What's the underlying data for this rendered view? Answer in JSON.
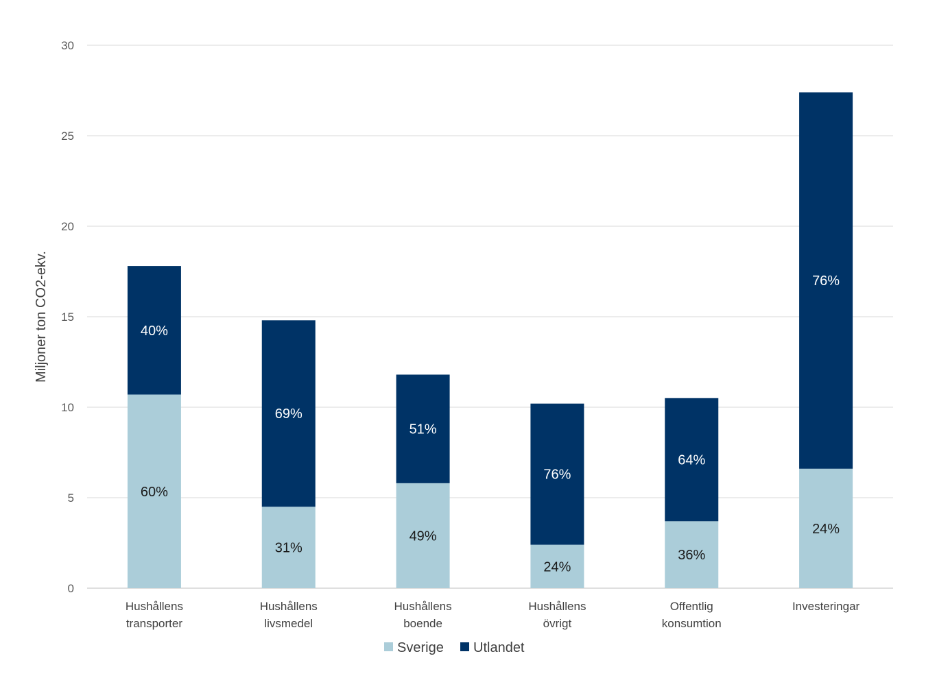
{
  "chart_data": {
    "type": "bar",
    "stacked": true,
    "title": "",
    "xlabel": "",
    "ylabel": "Miljoner ton CO2-ekv.",
    "ylim": [
      0,
      30
    ],
    "yticks": [
      0,
      5,
      10,
      15,
      20,
      25,
      30
    ],
    "grid": true,
    "legend_position": "bottom",
    "categories": [
      [
        "Hushållens",
        "transporter"
      ],
      [
        "Hushållens",
        "livsmedel"
      ],
      [
        "Hushållens",
        "boende"
      ],
      [
        "Hushållens",
        "övrigt"
      ],
      [
        "Offentlig",
        "konsumtion"
      ],
      [
        "Investeringar"
      ]
    ],
    "series": [
      {
        "name": "Sverige",
        "color": "#abcdd9",
        "label_color": "#1a1a1a",
        "values": [
          10.7,
          4.5,
          5.8,
          2.4,
          3.7,
          6.6
        ],
        "labels": [
          "60%",
          "31%",
          "49%",
          "24%",
          "36%",
          "24%"
        ]
      },
      {
        "name": "Utlandet",
        "color": "#003366",
        "label_color": "#ffffff",
        "values": [
          7.1,
          10.3,
          6.0,
          7.8,
          6.8,
          20.8
        ],
        "labels": [
          "40%",
          "69%",
          "51%",
          "76%",
          "64%",
          "76%"
        ]
      }
    ]
  }
}
